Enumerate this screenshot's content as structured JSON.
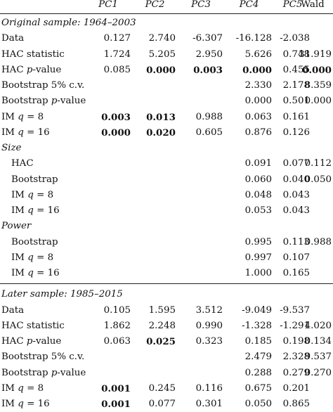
{
  "header": {
    "columns": [
      "PC1",
      "PC2",
      "PC3",
      "PC4",
      "PC5",
      "Wald"
    ]
  },
  "sections": [
    {
      "title": "Original sample: 1964–2003",
      "rows": [
        {
          "label": "Data",
          "values": [
            "0.127",
            "2.740",
            "-6.307",
            "-16.128",
            "-2.038",
            ""
          ],
          "bold": []
        },
        {
          "label": "HAC statistic",
          "values": [
            "1.724",
            "5.205",
            "2.950",
            "5.626",
            "0.748",
            "31.919"
          ],
          "bold": []
        },
        {
          "label": "HAC p-value",
          "values": [
            "0.085",
            "0.000",
            "0.003",
            "0.000",
            "0.455",
            "0.000"
          ],
          "bold": [
            1,
            2,
            3,
            5
          ]
        },
        {
          "label": "Bootstrap 5% c.v.",
          "values": [
            "",
            "",
            "",
            "2.330",
            "2.178",
            "8.359"
          ],
          "bold": []
        },
        {
          "label": "Bootstrap p-value",
          "values": [
            "",
            "",
            "",
            "0.000",
            "0.501",
            "0.000"
          ],
          "bold": []
        },
        {
          "label": "IM q = 8",
          "values": [
            "0.003",
            "0.013",
            "0.988",
            "0.063",
            "0.161",
            ""
          ],
          "bold": [
            0,
            1
          ]
        },
        {
          "label": "IM q = 16",
          "values": [
            "0.000",
            "0.020",
            "0.605",
            "0.876",
            "0.126",
            ""
          ],
          "bold": [
            0,
            1
          ]
        }
      ]
    },
    {
      "title": "Size",
      "rows": [
        {
          "label": "HAC",
          "values": [
            "",
            "",
            "",
            "0.091",
            "0.077",
            "0.112"
          ],
          "bold": []
        },
        {
          "label": "Bootstrap",
          "values": [
            "",
            "",
            "",
            "0.060",
            "0.040",
            "0.050"
          ],
          "bold": []
        },
        {
          "label": "IM q = 8",
          "values": [
            "",
            "",
            "",
            "0.048",
            "0.043",
            ""
          ],
          "bold": []
        },
        {
          "label": "IM q = 16",
          "values": [
            "",
            "",
            "",
            "0.053",
            "0.043",
            ""
          ],
          "bold": []
        }
      ]
    },
    {
      "title": "Power",
      "rows": [
        {
          "label": "Bootstrap",
          "values": [
            "",
            "",
            "",
            "0.995",
            "0.113",
            "0.988"
          ],
          "bold": []
        },
        {
          "label": "IM q = 8",
          "values": [
            "",
            "",
            "",
            "0.997",
            "0.107",
            ""
          ],
          "bold": []
        },
        {
          "label": "IM q = 16",
          "values": [
            "",
            "",
            "",
            "1.000",
            "0.165",
            ""
          ],
          "bold": []
        }
      ]
    },
    {
      "title": "Later sample: 1985–2015",
      "rows": [
        {
          "label": "Data",
          "values": [
            "0.105",
            "1.595",
            "3.512",
            "-9.049",
            "-9.537",
            ""
          ],
          "bold": []
        },
        {
          "label": "HAC statistic",
          "values": [
            "1.862",
            "2.248",
            "0.990",
            "-1.328",
            "-1.291",
            "4.020"
          ],
          "bold": []
        },
        {
          "label": "HAC p-value",
          "values": [
            "0.063",
            "0.025",
            "0.323",
            "0.185",
            "0.198",
            "0.134"
          ],
          "bold": [
            1
          ]
        },
        {
          "label": "Bootstrap 5% c.v.",
          "values": [
            "",
            "",
            "",
            "2.479",
            "2.328",
            "9.537"
          ],
          "bold": []
        },
        {
          "label": "Bootstrap p-value",
          "values": [
            "",
            "",
            "",
            "0.288",
            "0.279",
            "0.270"
          ],
          "bold": []
        },
        {
          "label": "IM q = 8",
          "values": [
            "0.001",
            "0.245",
            "0.116",
            "0.675",
            "0.201",
            ""
          ],
          "bold": [
            0
          ]
        },
        {
          "label": "IM q = 16",
          "values": [
            "0.001",
            "0.077",
            "0.301",
            "0.050",
            "0.865",
            ""
          ],
          "bold": [
            0
          ]
        }
      ]
    }
  ]
}
